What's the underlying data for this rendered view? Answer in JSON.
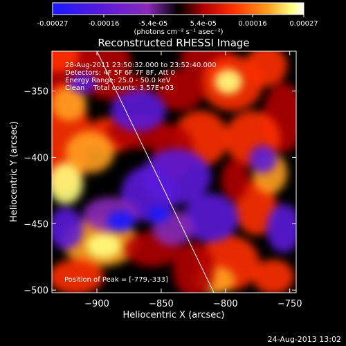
{
  "colorbar": {
    "tick_labels": [
      "-0.00027",
      "-0.00016",
      "-5.4e-05",
      "5.4e-05",
      "0.00016",
      "0.00027"
    ],
    "tick_values": [
      -0.00027,
      -0.00016,
      -5.4e-05,
      5.4e-05,
      0.00016,
      0.00027
    ],
    "range": [
      -0.00027,
      0.00027
    ],
    "unit_label": "(photons cm⁻² s⁻¹ asec⁻²)",
    "colors": [
      "#1a1aff",
      "#5a1ad8",
      "#8a2ab8",
      "#000000",
      "#b00000",
      "#ff3000",
      "#ffa020",
      "#ffff80",
      "#ffffff"
    ]
  },
  "chart_data": {
    "type": "heatmap",
    "title": "Reconstructed RHESSI Image",
    "xlabel": "Heliocentric X (arcsec)",
    "ylabel": "Heliocentric Y (arcsec)",
    "xlim": [
      -935,
      -745
    ],
    "ylim": [
      -502,
      -320
    ],
    "x_ticks": [
      -900,
      -850,
      -800,
      -750
    ],
    "y_ticks": [
      -350,
      -400,
      -450,
      -500
    ],
    "annotations": [
      "28-Aug-2011 23:50:32.000 to 23:52:40.000",
      "Detectors: 4F 5F 6F 7F 8F, Att 0",
      "Energy Range: 25.0 - 50.0 keV",
      "Clean    Total counts: 3.57E+03"
    ],
    "peak_label": "Position of Peak = [-779,-333]",
    "peak": [
      -779,
      -333
    ],
    "limb_line": [
      [
        -900,
        -320
      ],
      [
        -809,
        -502
      ]
    ]
  },
  "footer": {
    "timestamp": "24-Aug-2013 13:02"
  }
}
